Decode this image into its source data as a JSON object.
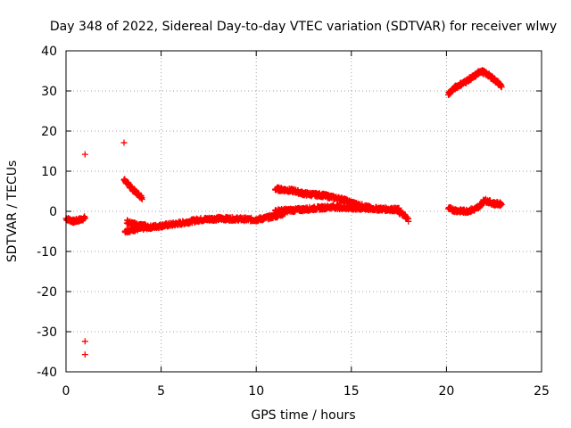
{
  "chart_data": {
    "type": "scatter",
    "title": "Day 348 of 2022, Sidereal Day-to-day VTEC variation (SDTVAR) for receiver wlwy",
    "xlabel": "GPS time / hours",
    "ylabel": "SDTVAR / TECUs",
    "xlim": [
      0,
      25
    ],
    "ylim": [
      -40,
      40
    ],
    "xticks": [
      0,
      5,
      10,
      15,
      20,
      25
    ],
    "yticks": [
      -40,
      -30,
      -20,
      -10,
      0,
      10,
      20,
      30,
      40
    ],
    "grid": true,
    "marker": "+",
    "color": "#ff0000",
    "isolated_points": [
      {
        "x": 1.0,
        "y": 14.2
      },
      {
        "x": 1.0,
        "y": -32.4
      },
      {
        "x": 1.0,
        "y": -35.7
      },
      {
        "x": 3.05,
        "y": 17.1
      }
    ],
    "tracks": [
      {
        "name": "arc-0-1",
        "points": [
          [
            0.0,
            -1.8
          ],
          [
            0.4,
            -2.5
          ],
          [
            0.8,
            -2.0
          ],
          [
            1.0,
            -1.6
          ]
        ]
      },
      {
        "name": "arc-3-4",
        "points": [
          [
            3.05,
            7.9
          ],
          [
            3.5,
            5.5
          ],
          [
            4.0,
            3.4
          ]
        ]
      },
      {
        "name": "arc-3-11",
        "points": [
          [
            3.1,
            -4.9
          ],
          [
            4.0,
            -4.2
          ],
          [
            5.0,
            -3.6
          ],
          [
            6.0,
            -3.0
          ],
          [
            7.0,
            -2.1
          ],
          [
            8.0,
            -1.8
          ],
          [
            9.0,
            -1.9
          ],
          [
            10.0,
            -2.1
          ],
          [
            11.0,
            -1.2
          ],
          [
            11.5,
            -0.4
          ]
        ]
      },
      {
        "name": "arc-3-4b",
        "points": [
          [
            3.2,
            -2.6
          ],
          [
            3.7,
            -3.4
          ],
          [
            4.2,
            -3.6
          ]
        ]
      },
      {
        "name": "arc-11-16-upper",
        "points": [
          [
            11.0,
            5.6
          ],
          [
            12.0,
            5.1
          ],
          [
            12.5,
            4.4
          ],
          [
            13.5,
            4.0
          ],
          [
            14.5,
            3.0
          ],
          [
            15.2,
            1.8
          ],
          [
            16.0,
            0.8
          ]
        ]
      },
      {
        "name": "arc-11-18-lower",
        "points": [
          [
            11.0,
            0.1
          ],
          [
            12.0,
            0.3
          ],
          [
            13.0,
            0.7
          ],
          [
            14.0,
            1.1
          ],
          [
            15.0,
            0.8
          ],
          [
            16.0,
            0.7
          ],
          [
            17.0,
            0.5
          ],
          [
            17.5,
            0.4
          ]
        ]
      },
      {
        "name": "arc-17-18",
        "points": [
          [
            17.5,
            -0.2
          ],
          [
            17.8,
            -1.0
          ],
          [
            18.0,
            -2.2
          ]
        ]
      },
      {
        "name": "arc-20-23-upper",
        "points": [
          [
            20.1,
            29.3
          ],
          [
            20.5,
            31.0
          ],
          [
            21.0,
            32.3
          ],
          [
            21.5,
            33.8
          ],
          [
            21.8,
            35.0
          ],
          [
            22.2,
            34.0
          ],
          [
            22.6,
            32.5
          ],
          [
            22.9,
            31.2
          ]
        ]
      },
      {
        "name": "arc-20-23-lower",
        "points": [
          [
            20.1,
            0.7
          ],
          [
            20.5,
            0.2
          ],
          [
            21.0,
            0.0
          ],
          [
            21.5,
            0.5
          ],
          [
            21.8,
            1.6
          ],
          [
            22.0,
            2.8
          ],
          [
            22.5,
            1.9
          ],
          [
            22.9,
            1.8
          ]
        ]
      }
    ]
  }
}
